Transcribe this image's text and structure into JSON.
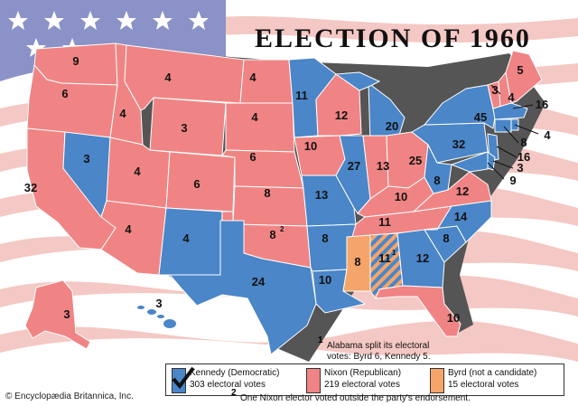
{
  "title": "ELECTION OF 1960",
  "colors": {
    "kennedy": "#4a86c8",
    "nixon": "#f08484",
    "byrd": "#f5a56a",
    "split_stripe": "#4a86c8",
    "flag_stripe": "#f4c8c4",
    "flag_canton": "#8a92c8"
  },
  "states": {
    "wa": "9",
    "or": "6",
    "ca": "32",
    "nv": "3",
    "id": "4",
    "mt": "4",
    "wy": "3",
    "ut": "4",
    "az": "4",
    "co": "6",
    "nm": "4",
    "nd": "4",
    "sd": "4",
    "ne": "6",
    "ks": "8",
    "ok": "8",
    "ok_note": "2",
    "tx": "24",
    "mn": "11",
    "ia": "10",
    "mo": "13",
    "ar": "8",
    "la": "10",
    "wi": "12",
    "il": "27",
    "mi": "20",
    "in": "13",
    "oh": "25",
    "ky": "10",
    "tn": "11",
    "ms": "8",
    "al": "11",
    "al_note": "1",
    "ga": "12",
    "fl": "10",
    "sc": "8",
    "nc": "14",
    "va": "12",
    "wv": "8",
    "pa": "32",
    "ny": "45",
    "me": "5",
    "vt": "3",
    "nh": "4",
    "ma": "16",
    "ri": "4",
    "ct": "8",
    "nj": "16",
    "de": "3",
    "md": "9",
    "ak": "3",
    "hi": "3"
  },
  "footnotes": {
    "note1_marker": "1",
    "note1_line1": "Alabama split its electoral",
    "note1_line2": "votes: Byrd 6, Kennedy 5.",
    "note2_marker": "2",
    "note2_text": "One Nixon elector voted outside the party's endorsement."
  },
  "legend": {
    "kennedy_label": "Kennedy (Democratic)",
    "kennedy_votes": "303 electoral votes",
    "nixon_label": "Nixon (Republican)",
    "nixon_votes": "219 electoral votes",
    "byrd_label": "Byrd (not a candidate)",
    "byrd_votes": "15 electoral votes"
  },
  "credit": "© Encyclopædia Britannica, Inc."
}
